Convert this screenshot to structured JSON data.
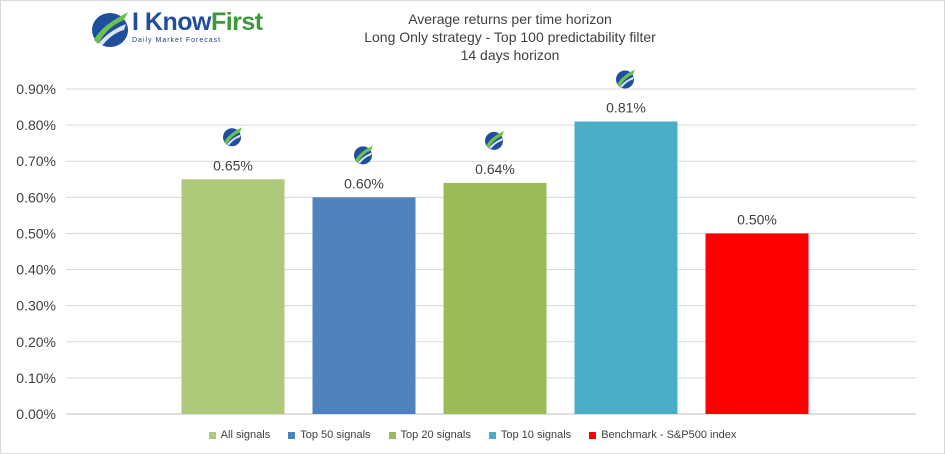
{
  "logo": {
    "brand_main": "I Know",
    "brand_accent": "First",
    "tagline": "Daily Market Forecast"
  },
  "chart_data": {
    "type": "bar",
    "title": "Average returns per time horizon",
    "subtitle": "Long Only strategy - Top 100 predictability filter",
    "subtitle2": "14 days horizon",
    "categories": [
      "All signals",
      "Top 50 signals",
      "Top 20 signals",
      "Top 10 signals",
      "Benchmark - S&P500 index"
    ],
    "values": [
      0.65,
      0.6,
      0.64,
      0.81,
      0.5
    ],
    "value_labels": [
      "0.65%",
      "0.60%",
      "0.64%",
      "0.81%",
      "0.50%"
    ],
    "colors": [
      "#aec97a",
      "#4f81bd",
      "#9bbb59",
      "#4bacc6",
      "#ff0000"
    ],
    "ylim": [
      0,
      0.9
    ],
    "yticks": [
      "0.00%",
      "0.10%",
      "0.20%",
      "0.30%",
      "0.40%",
      "0.50%",
      "0.60%",
      "0.70%",
      "0.80%",
      "0.90%"
    ],
    "grid": true,
    "legend_position": "bottom",
    "xlabel": "",
    "ylabel": ""
  }
}
